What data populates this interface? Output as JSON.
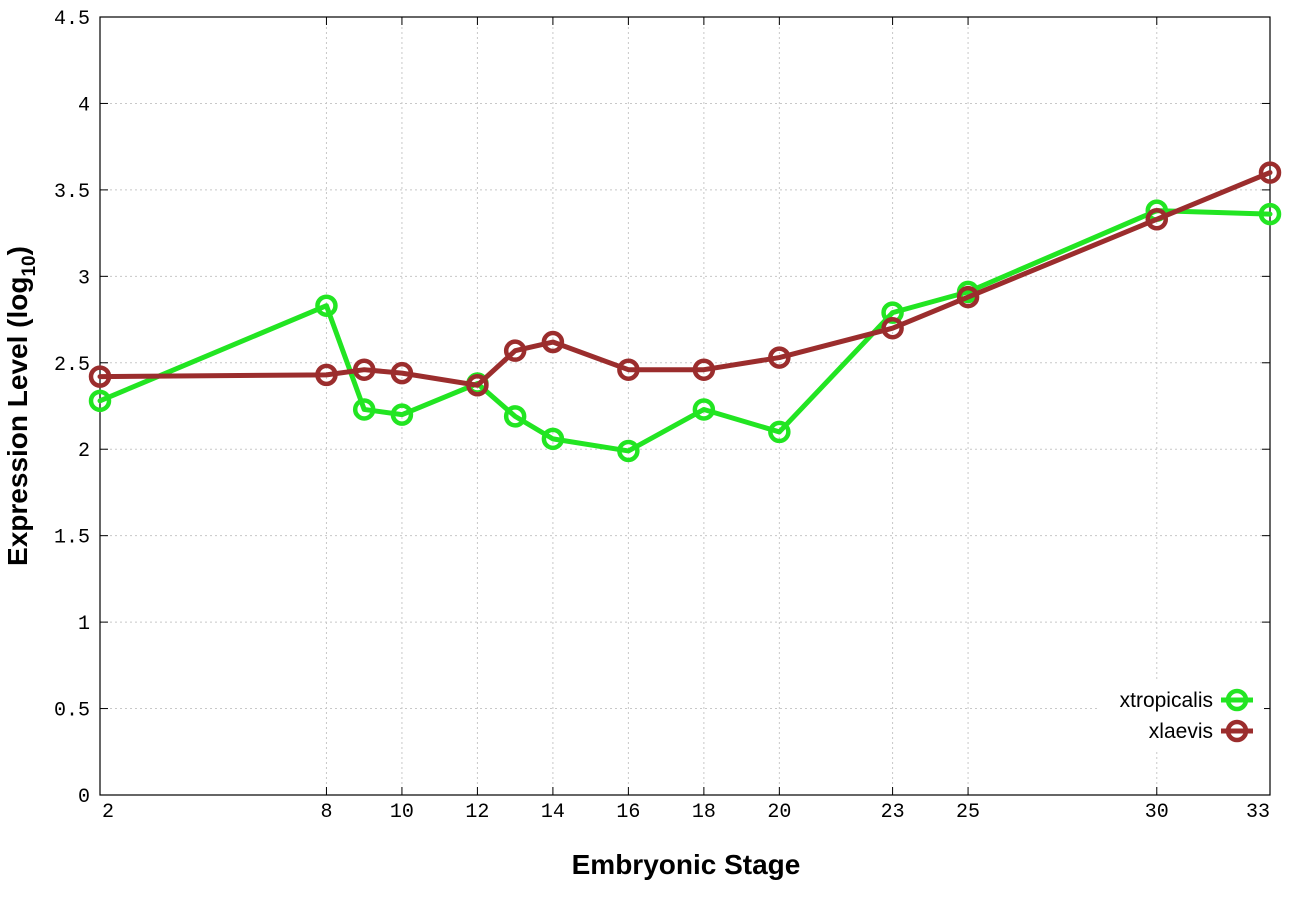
{
  "chart_data": {
    "type": "line",
    "title": "",
    "xlabel": "Embryonic Stage",
    "ylabel_main": "Expression Level (log",
    "ylabel_sub": "10",
    "ylabel_close": ")",
    "x_ticks": [
      2,
      8,
      10,
      12,
      14,
      16,
      18,
      20,
      23,
      25,
      30,
      33
    ],
    "x_tick_labels": [
      "2",
      "8",
      "10",
      "12",
      "14",
      "16",
      "18",
      "20",
      "23",
      "25",
      "30",
      "33"
    ],
    "y_ticks": [
      0,
      0.5,
      1,
      1.5,
      2,
      2.5,
      3,
      3.5,
      4,
      4.5
    ],
    "y_tick_labels": [
      "0",
      "0.5",
      "1",
      "1.5",
      "2",
      "2.5",
      "3",
      "3.5",
      "4",
      "4.5"
    ],
    "xlim": [
      2,
      33
    ],
    "ylim": [
      0,
      4.5
    ],
    "grid": true,
    "legend_position": "bottom-right",
    "series": [
      {
        "name": "xtropicalis",
        "color": "#22e522",
        "x": [
          2,
          8,
          9,
          10,
          12,
          13,
          14,
          16,
          18,
          20,
          23,
          25,
          30,
          33
        ],
        "values": [
          2.28,
          2.83,
          2.23,
          2.2,
          2.38,
          2.19,
          2.06,
          1.99,
          2.23,
          2.1,
          2.79,
          2.91,
          3.38,
          3.36
        ]
      },
      {
        "name": "xlaevis",
        "color": "#9b2d2d",
        "x": [
          2,
          8,
          9,
          10,
          12,
          13,
          14,
          16,
          18,
          20,
          23,
          25,
          30,
          33
        ],
        "values": [
          2.42,
          2.43,
          2.46,
          2.44,
          2.37,
          2.57,
          2.62,
          2.46,
          2.46,
          2.53,
          2.7,
          2.88,
          3.33,
          3.6
        ]
      }
    ]
  }
}
